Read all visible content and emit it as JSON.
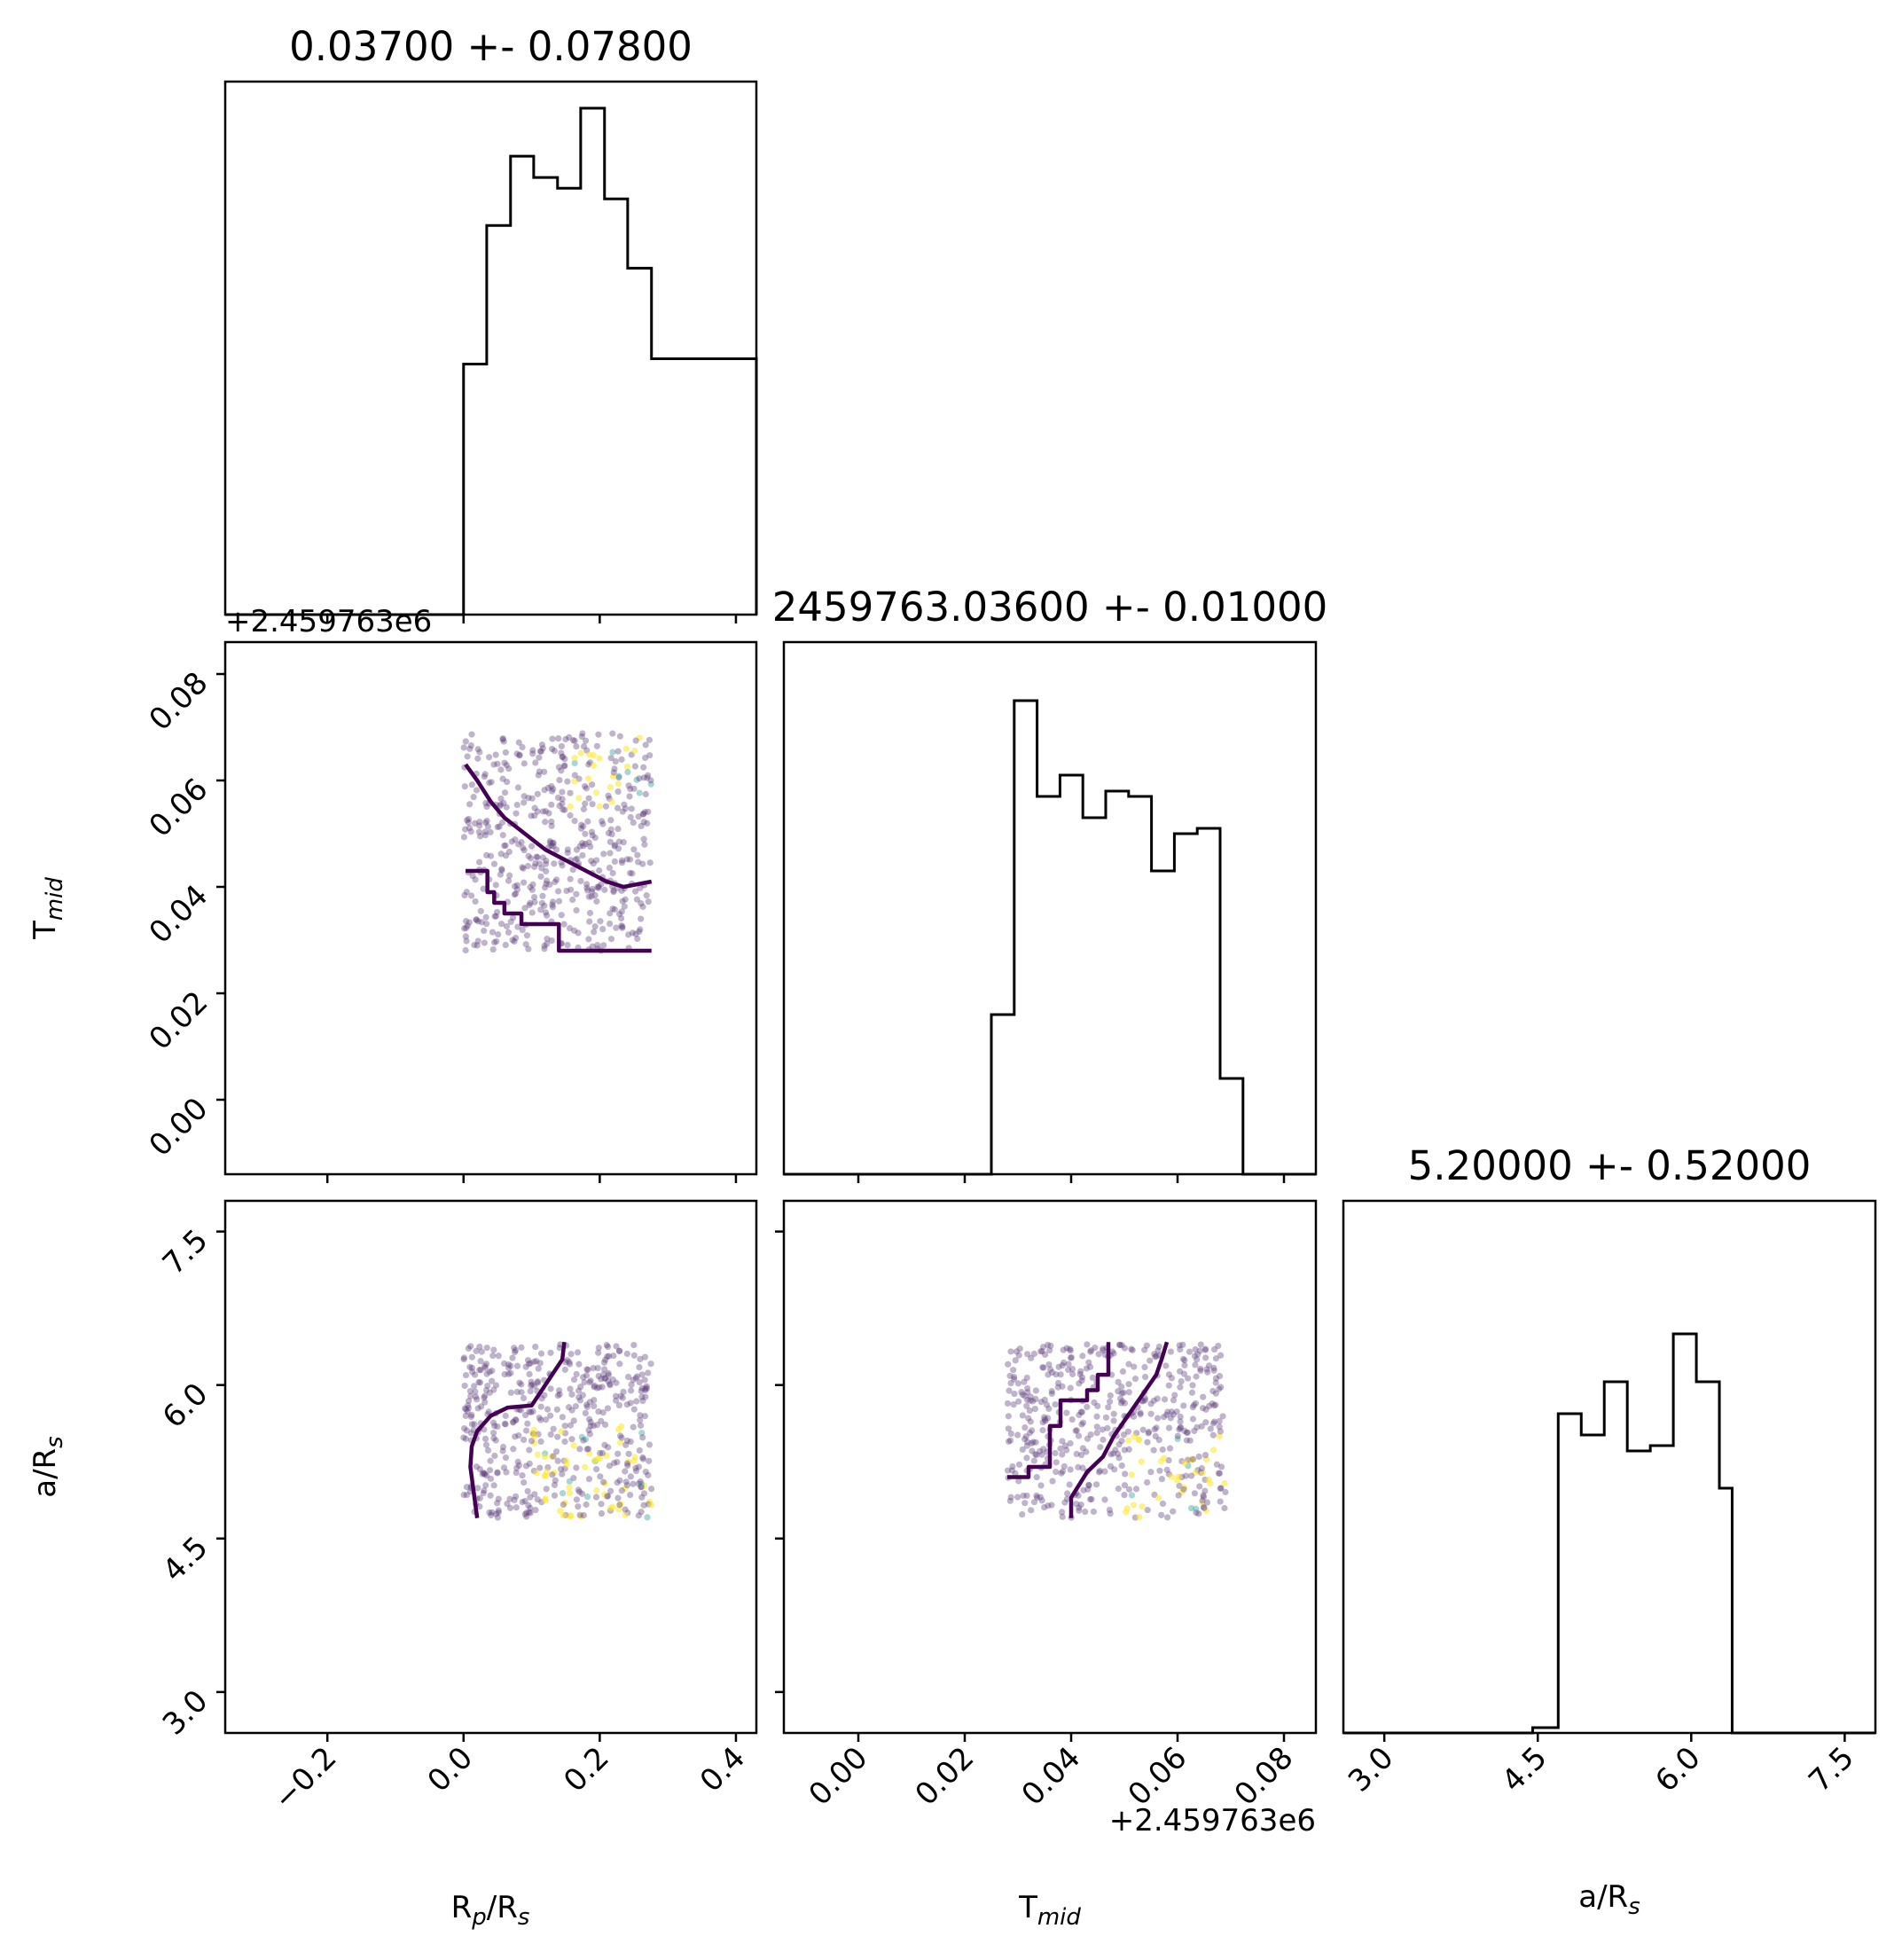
{
  "chart_data": [
    {
      "type": "histogram",
      "panel": "Rp/Rs marginal",
      "title": "0.03700 +- 0.07800",
      "x_range": [
        -0.35,
        0.43
      ],
      "xticks": [
        -0.2,
        0.0,
        0.2,
        0.4
      ],
      "bins": {
        "edges": [
          -0.35,
          0.0,
          0.034,
          0.069,
          0.103,
          0.138,
          0.172,
          0.207,
          0.241,
          0.276,
          0.43
        ],
        "counts": [
          0,
          0.47,
          0.73,
          0.86,
          0.82,
          0.8,
          0.95,
          0.78,
          0.65,
          0.48,
          0
        ]
      }
    },
    {
      "type": "scatter",
      "panel": "Tmid vs Rp/Rs",
      "x_range": [
        -0.35,
        0.43
      ],
      "y_range": [
        -0.014,
        0.086
      ],
      "xticks": [
        -0.2,
        0.0,
        0.2,
        0.4
      ],
      "yticks": [
        0.0,
        0.02,
        0.04,
        0.06,
        0.08
      ],
      "ytick_labels": [
        "0.00",
        "0.02",
        "0.04",
        "0.06",
        "0.08"
      ],
      "y_offset_label": "+2.459763e6",
      "sample_box": {
        "x": [
          0.0,
          0.276
        ],
        "y": [
          0.028,
          0.069
        ]
      },
      "bright_region": {
        "x": [
          0.15,
          0.276
        ],
        "y": [
          0.055,
          0.069
        ]
      },
      "contours": [
        {
          "x": [
            0.003,
            0.02,
            0.04,
            0.06,
            0.09,
            0.12,
            0.15,
            0.18,
            0.21,
            0.235,
            0.276
          ],
          "y": [
            0.063,
            0.06,
            0.056,
            0.053,
            0.05,
            0.047,
            0.045,
            0.043,
            0.041,
            0.04,
            0.041
          ]
        },
        {
          "x": [
            0.003,
            0.035,
            0.035,
            0.045,
            0.045,
            0.06,
            0.06,
            0.085,
            0.085,
            0.14,
            0.14,
            0.276
          ],
          "y": [
            0.043,
            0.043,
            0.039,
            0.039,
            0.037,
            0.037,
            0.035,
            0.035,
            0.033,
            0.033,
            0.028,
            0.028
          ]
        }
      ]
    },
    {
      "type": "histogram",
      "panel": "Tmid marginal",
      "title": "2459763.03600 +- 0.01000",
      "x_range": [
        -0.014,
        0.086
      ],
      "xticks": [
        0.0,
        0.02,
        0.04,
        0.06,
        0.08
      ],
      "bins": {
        "edges": [
          -0.014,
          0.025,
          0.0293,
          0.0336,
          0.0379,
          0.0422,
          0.0465,
          0.0508,
          0.0551,
          0.0594,
          0.0637,
          0.068,
          0.0723,
          0.086
        ],
        "counts": [
          0,
          0.3,
          0.89,
          0.71,
          0.75,
          0.67,
          0.72,
          0.71,
          0.57,
          0.64,
          0.65,
          0.18,
          0,
          0
        ]
      }
    },
    {
      "type": "scatter",
      "panel": "a/Rs vs Rp/Rs",
      "x_range": [
        -0.35,
        0.43
      ],
      "y_range": [
        2.6,
        7.8
      ],
      "xticks": [
        -0.2,
        0.0,
        0.2,
        0.4
      ],
      "xtick_labels": [
        "−0.2",
        "0.0",
        "0.2",
        "0.4"
      ],
      "yticks": [
        3.0,
        4.5,
        6.0,
        7.5
      ],
      "ytick_labels": [
        "3.0",
        "4.5",
        "6.0",
        "7.5"
      ],
      "xlabel": "R<sub>p</sub>/R<sub>s</sub>",
      "ylabel": "a/R<sub>s</sub>",
      "sample_box": {
        "x": [
          0.0,
          0.276
        ],
        "y": [
          4.7,
          6.4
        ]
      },
      "bright_region": {
        "x": [
          0.1,
          0.276
        ],
        "y": [
          4.7,
          5.6
        ]
      },
      "contours": [
        {
          "x": [
            0.02,
            0.015,
            0.01,
            0.012,
            0.02,
            0.04,
            0.065,
            0.1,
            0.115,
            0.13,
            0.145,
            0.148
          ],
          "y": [
            4.7,
            4.95,
            5.2,
            5.4,
            5.55,
            5.7,
            5.78,
            5.8,
            5.95,
            6.1,
            6.25,
            6.42
          ]
        }
      ]
    },
    {
      "type": "scatter",
      "panel": "a/Rs vs Tmid",
      "x_range": [
        -0.014,
        0.086
      ],
      "y_range": [
        2.6,
        7.8
      ],
      "xticks": [
        0.0,
        0.02,
        0.04,
        0.06,
        0.08
      ],
      "xtick_labels": [
        "0.00",
        "0.02",
        "0.04",
        "0.06",
        "0.08"
      ],
      "yticks": [
        3.0,
        4.5,
        6.0,
        7.5
      ],
      "xlabel": "T<sub>mid</sub>",
      "x_offset_label": "+2.459763e6",
      "sample_box": {
        "x": [
          0.028,
          0.069
        ],
        "y": [
          4.7,
          6.4
        ]
      },
      "bright_region": {
        "x": [
          0.05,
          0.069
        ],
        "y": [
          4.7,
          5.5
        ]
      },
      "contours": [
        {
          "x": [
            0.028,
            0.032,
            0.032,
            0.036,
            0.036,
            0.038,
            0.038,
            0.043,
            0.043,
            0.045,
            0.045,
            0.047,
            0.047
          ],
          "y": [
            5.1,
            5.1,
            5.2,
            5.2,
            5.6,
            5.6,
            5.85,
            5.85,
            5.95,
            5.95,
            6.1,
            6.1,
            6.42
          ]
        },
        {
          "x": [
            0.04,
            0.04,
            0.043,
            0.046,
            0.048,
            0.05,
            0.052,
            0.054,
            0.056,
            0.057,
            0.058
          ],
          "y": [
            4.7,
            4.9,
            5.15,
            5.3,
            5.5,
            5.65,
            5.8,
            5.95,
            6.1,
            6.25,
            6.42
          ]
        }
      ]
    },
    {
      "type": "histogram",
      "panel": "a/Rs marginal",
      "title": "5.20000 +- 0.52000",
      "x_range": [
        2.6,
        7.8
      ],
      "xticks": [
        3.0,
        4.5,
        6.0,
        7.5
      ],
      "xtick_labels": [
        "3.0",
        "4.5",
        "6.0",
        "7.5"
      ],
      "xlabel": "a/R<sub>s</sub>",
      "bins": {
        "edges": [
          2.6,
          4.45,
          4.7,
          4.925,
          5.15,
          5.375,
          5.6,
          5.825,
          6.05,
          6.275,
          6.4,
          7.8
        ],
        "counts": [
          0,
          0.01,
          0.6,
          0.56,
          0.66,
          0.53,
          0.54,
          0.75,
          0.66,
          0.46,
          0,
          0
        ]
      }
    }
  ],
  "axis_labels": {
    "tmid_y": "T<sub>mid</sub>",
    "ars_y": "a/R<sub>s</sub>",
    "rprs_x": "R<sub>p</sub>/R<sub>s</sub>",
    "tmid_x": "T<sub>mid</sub>",
    "ars_x": "a/R<sub>s</sub>"
  },
  "offset_labels": {
    "top_left": "+2.459763e6",
    "tmid_x": "+2.459763e6"
  },
  "colors": {
    "contour": "#440154",
    "scatter_main": "#5a3a7a",
    "scatter_teal": "#3fa3a3",
    "scatter_yellow": "#fde725",
    "axes": "#000000"
  }
}
